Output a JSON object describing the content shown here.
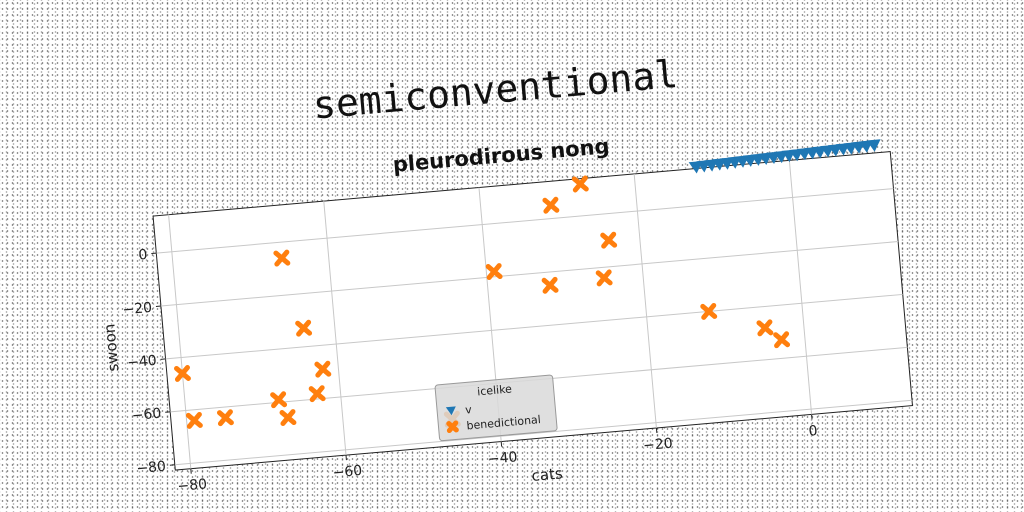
{
  "chart_data": {
    "type": "scatter",
    "suptitle": "semiconventional",
    "title": "pleurodirous nong",
    "xlabel": "cats",
    "ylabel": "swoon",
    "xlim": [
      -82,
      13
    ],
    "ylim": [
      -82,
      14
    ],
    "xticks": [
      -80,
      -60,
      -40,
      -20,
      0
    ],
    "yticks": [
      0,
      -20,
      -40,
      -60,
      -80
    ],
    "grid": true,
    "legend": {
      "title": "icelike",
      "placement": "lower center",
      "entries": [
        "v",
        "benedictional"
      ]
    },
    "series": [
      {
        "name": "v",
        "marker": "triangle-down",
        "color": "#1f77b4",
        "points": [
          [
            -12.0,
            14.5
          ],
          [
            -11.0,
            14.6
          ],
          [
            -10.0,
            14.7
          ],
          [
            -9.0,
            14.8
          ],
          [
            -8.0,
            14.9
          ],
          [
            -7.0,
            15.0
          ],
          [
            -6.0,
            15.1
          ],
          [
            -5.0,
            15.2
          ],
          [
            -4.0,
            15.3
          ],
          [
            -3.0,
            15.4
          ],
          [
            -2.0,
            15.5
          ],
          [
            -1.0,
            15.6
          ],
          [
            0.0,
            15.7
          ],
          [
            1.0,
            15.8
          ],
          [
            2.0,
            15.9
          ],
          [
            3.0,
            16.0
          ],
          [
            4.0,
            16.1
          ],
          [
            5.0,
            16.2
          ],
          [
            6.0,
            16.3
          ],
          [
            7.0,
            16.4
          ],
          [
            8.0,
            16.5
          ],
          [
            9.0,
            16.6
          ],
          [
            10.0,
            16.7
          ],
          [
            11.0,
            16.8
          ]
        ]
      },
      {
        "name": "benedictional",
        "marker": "x",
        "color": "#ff7f0e",
        "points": [
          [
            -80,
            -46
          ],
          [
            -79,
            -64
          ],
          [
            -75,
            -64
          ],
          [
            -68,
            -59
          ],
          [
            -67,
            -66
          ],
          [
            -66,
            -6
          ],
          [
            -64,
            -33
          ],
          [
            -63,
            -58
          ],
          [
            -62,
            -49
          ],
          [
            -46,
            -72
          ],
          [
            -39,
            -18
          ],
          [
            -32,
            -25
          ],
          [
            -31,
            5
          ],
          [
            -27,
            12
          ],
          [
            -24,
            -10
          ],
          [
            -25,
            -24
          ],
          [
            -12,
            -40
          ],
          [
            -5,
            -48
          ],
          [
            -3,
            -53
          ]
        ]
      }
    ]
  }
}
